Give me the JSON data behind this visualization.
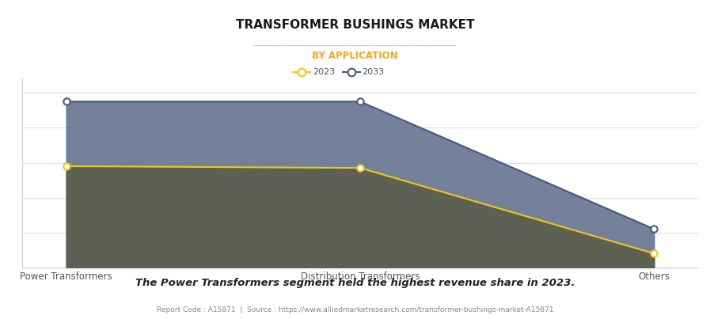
{
  "title": "TRANSFORMER BUSHINGS MARKET",
  "subtitle": "BY APPLICATION",
  "categories": [
    "Power Transformers",
    "Distribution Transformers",
    "Others"
  ],
  "series_2033": [
    0.95,
    0.95,
    0.22
  ],
  "series_2023": [
    0.58,
    0.57,
    0.08
  ],
  "color_2033_fill": "#5b6b8a",
  "color_2033_line": "#4a5a7a",
  "color_2023_line": "#f5c518",
  "color_2023_marker": "#f5c518",
  "color_2033_marker": "#4a5a7a",
  "background": "#ffffff",
  "grid_color": "#e0e0e0",
  "annotation": "The Power Transformers segment held the highest revenue share in 2023.",
  "footnote": "Report Code : A15871  |  Source : https://www.alliedmarketresearch.com/transformer-bushings-market-A15871",
  "subtitle_color": "#f5a623",
  "title_color": "#1a1a1a",
  "legend_2023_label": "2023",
  "legend_2033_label": "2033"
}
